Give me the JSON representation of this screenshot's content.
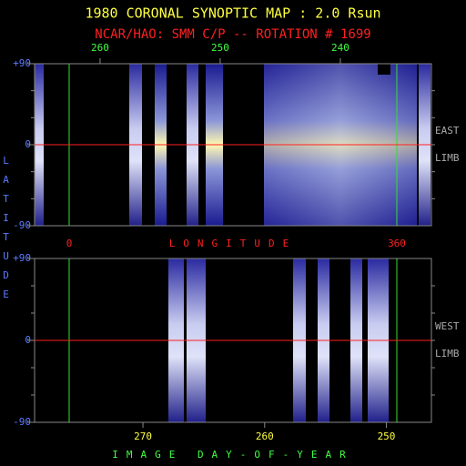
{
  "title": "1980 CORONAL SYNOPTIC MAP : 2.0 Rsun",
  "subtitle": "NCAR/HAO: SMM C/P -- ROTATION # 1699",
  "ylabel": "LATITUDE",
  "top_panel": {
    "xlim": [
      -38,
      398
    ],
    "longitude_ticks": [
      0,
      360
    ],
    "xlabel": "LONGITUDE",
    "day_xlim": [
      265.45,
      232.42
    ],
    "day_ticks": [
      260,
      250,
      240
    ],
    "ylim": [
      -90,
      90
    ],
    "yticks": [
      {
        "value": 90,
        "label": "+90"
      },
      0,
      {
        "value": -90,
        "label": "-90"
      }
    ],
    "right_labels": [
      "EAST",
      "LIMB"
    ]
  },
  "bottom_panel": {
    "xlim": [
      278.9,
      246.3
    ],
    "xticks": [
      270,
      260,
      250
    ],
    "xlabel": "IMAGE DAY-OF-YEAR",
    "ylim": [
      -90,
      90
    ],
    "yticks": [
      {
        "value": 90,
        "label": "+90"
      },
      0,
      {
        "value": -90,
        "label": "-90"
      }
    ],
    "right_labels": [
      "WEST",
      "LIMB"
    ]
  }
}
